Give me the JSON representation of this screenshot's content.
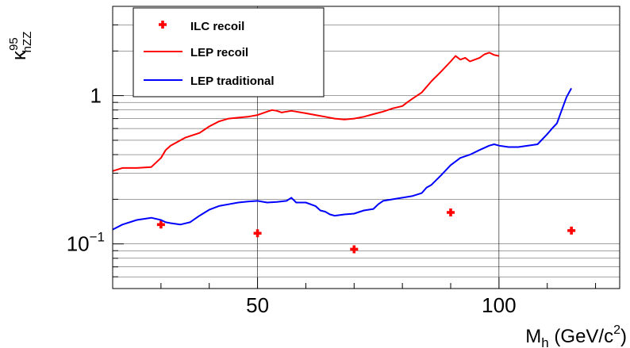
{
  "chart_data": {
    "type": "line",
    "xlabel": "M_h (GeV/c^2)",
    "ylabel": "κ^95_hZZ",
    "x_axis": {
      "label_main": "M",
      "label_sub": "h",
      "label_rest": " (GeV/c",
      "label_sup": "2",
      "label_close": ")",
      "range": [
        20,
        125
      ],
      "scale": "linear",
      "major_ticks": [
        50,
        100
      ],
      "tick_labels": [
        "50",
        "100"
      ]
    },
    "y_axis": {
      "label_main": "κ",
      "label_sup": "95",
      "label_sub": "hZZ",
      "range": [
        0.05,
        4.0
      ],
      "scale": "log",
      "tick_labels": [
        {
          "value": 1,
          "base": "1",
          "exp": ""
        },
        {
          "value": 0.1,
          "base": "10",
          "exp": "−1"
        }
      ]
    },
    "grid": true,
    "legend_position": "top-left",
    "series": [
      {
        "name": "ILC recoil",
        "style": "markers",
        "color": "#ff0000",
        "x": [
          30,
          50,
          70,
          90,
          115
        ],
        "y": [
          0.135,
          0.118,
          0.092,
          0.163,
          0.123
        ]
      },
      {
        "name": "LEP recoil",
        "style": "line",
        "color": "#ff0000",
        "x": [
          20,
          22,
          25,
          28,
          30,
          31,
          32,
          35,
          38,
          40,
          42,
          44,
          46,
          48,
          49,
          50,
          52,
          53,
          54,
          55,
          56,
          57,
          58,
          60,
          62,
          64,
          66,
          68,
          70,
          72,
          74,
          76,
          78,
          80,
          81,
          82,
          84,
          86,
          88,
          90,
          91,
          92,
          93,
          94,
          95,
          96,
          97,
          98,
          99,
          100
        ],
        "y": [
          0.31,
          0.325,
          0.325,
          0.33,
          0.38,
          0.43,
          0.46,
          0.52,
          0.56,
          0.62,
          0.67,
          0.7,
          0.71,
          0.72,
          0.73,
          0.74,
          0.78,
          0.8,
          0.79,
          0.77,
          0.78,
          0.79,
          0.78,
          0.76,
          0.74,
          0.72,
          0.7,
          0.69,
          0.7,
          0.72,
          0.75,
          0.78,
          0.82,
          0.85,
          0.9,
          0.95,
          1.05,
          1.25,
          1.45,
          1.7,
          1.85,
          1.75,
          1.8,
          1.7,
          1.75,
          1.8,
          1.9,
          1.95,
          1.88,
          1.85
        ]
      },
      {
        "name": "LEP traditional",
        "style": "line",
        "color": "#0000ff",
        "x": [
          20,
          22,
          25,
          28,
          30,
          31,
          32,
          34,
          36,
          38,
          40,
          42,
          44,
          46,
          48,
          50,
          52,
          54,
          56,
          57,
          58,
          60,
          62,
          63,
          64,
          65,
          66,
          68,
          70,
          72,
          74,
          75,
          76,
          78,
          80,
          82,
          84,
          85,
          86,
          88,
          90,
          92,
          94,
          96,
          98,
          99,
          100,
          102,
          104,
          106,
          108,
          110,
          111,
          112,
          113,
          114,
          115
        ],
        "y": [
          0.125,
          0.135,
          0.145,
          0.15,
          0.145,
          0.14,
          0.138,
          0.135,
          0.14,
          0.155,
          0.17,
          0.18,
          0.185,
          0.19,
          0.193,
          0.195,
          0.19,
          0.192,
          0.195,
          0.205,
          0.19,
          0.19,
          0.18,
          0.168,
          0.165,
          0.158,
          0.155,
          0.158,
          0.16,
          0.168,
          0.172,
          0.185,
          0.195,
          0.2,
          0.205,
          0.21,
          0.22,
          0.24,
          0.25,
          0.29,
          0.34,
          0.38,
          0.4,
          0.43,
          0.46,
          0.47,
          0.46,
          0.45,
          0.45,
          0.46,
          0.47,
          0.55,
          0.6,
          0.65,
          0.8,
          0.98,
          1.12
        ]
      }
    ]
  }
}
